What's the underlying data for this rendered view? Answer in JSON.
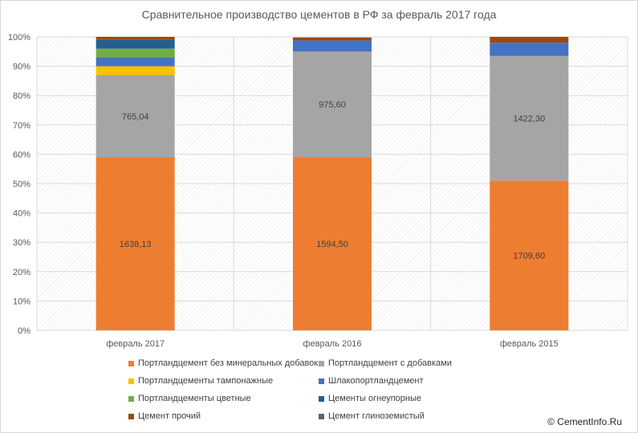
{
  "chart_data": {
    "type": "bar",
    "stacked": "percent",
    "title": "Сравнительное производство цементов в РФ за февраль 2017 года",
    "categories": [
      "февраль 2017",
      "февраль 2016",
      "февраль 2015"
    ],
    "ylim": [
      0,
      100
    ],
    "yticks": [
      "0%",
      "10%",
      "20%",
      "30%",
      "40%",
      "50%",
      "60%",
      "70%",
      "80%",
      "90%",
      "100%"
    ],
    "grid": true,
    "legend_position": "bottom",
    "series": [
      {
        "name": "Портландцемент без минеральных добавок",
        "color": "#ed7d31",
        "values": [
          59,
          59,
          51
        ],
        "labels": [
          "1638,13",
          "1594,50",
          "1709,60"
        ]
      },
      {
        "name": "Портландцемент с добавками",
        "color": "#a5a5a5",
        "values": [
          28,
          36,
          42.5
        ],
        "labels": [
          "765,04",
          "975,60",
          "1422,30"
        ]
      },
      {
        "name": "Портландцементы тампонажные",
        "color": "#ffc000",
        "values": [
          3,
          0,
          0
        ]
      },
      {
        "name": "Шлакопортландцемент",
        "color": "#4472c4",
        "values": [
          3,
          3.8,
          4.5
        ]
      },
      {
        "name": "Портландцементы цветные",
        "color": "#70ad47",
        "values": [
          3,
          0,
          0
        ]
      },
      {
        "name": "Цементы огнеупорные",
        "color": "#255e91",
        "values": [
          3,
          0,
          0
        ]
      },
      {
        "name": "Цемент прочий",
        "color": "#9e480e",
        "values": [
          1,
          1,
          2
        ]
      },
      {
        "name": "Цемент глиноземистый",
        "color": "#636363",
        "values": [
          0,
          0,
          0
        ]
      }
    ]
  },
  "copyright": "© CementInfo.Ru"
}
